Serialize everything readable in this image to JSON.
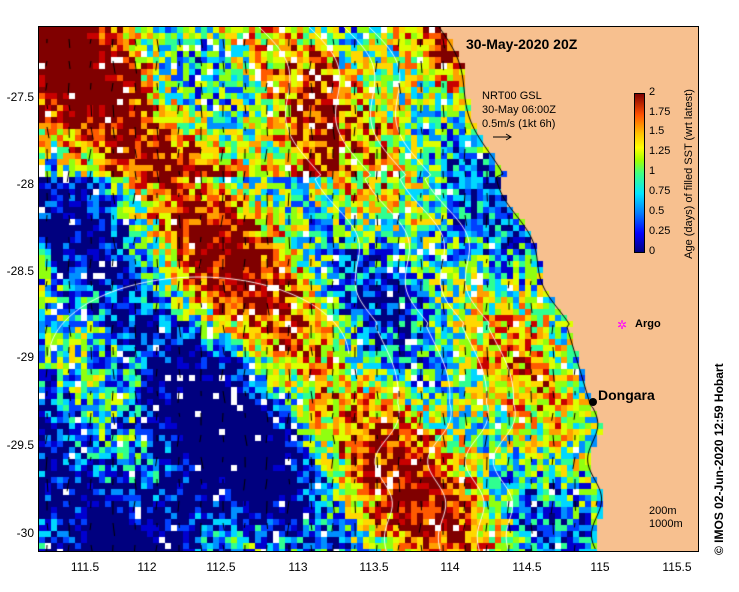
{
  "title": "30-May-2020 20Z",
  "gsl": {
    "line1": "NRT00 GSL",
    "line2": "30-May 06:00Z",
    "line3": "0.5m/s (1kt 6h)"
  },
  "colorbar": {
    "title": "Age (days) of filled SST (wrt latest)",
    "ticks": [
      "2",
      "1.75",
      "1.5",
      "1.25",
      "1",
      "0.75",
      "0.5",
      "0.25",
      "0"
    ],
    "range": [
      0,
      2
    ]
  },
  "axes": {
    "y_ticks": [
      "-27.5",
      "-28",
      "-28.5",
      "-29",
      "-29.5",
      "-30"
    ],
    "x_ticks": [
      "111.5",
      "112",
      "112.5",
      "113",
      "113.5",
      "114",
      "114.5",
      "115",
      "115.5"
    ],
    "lon_range": [
      111.3,
      115.6
    ],
    "lat_range": [
      -27.1,
      -30.1
    ]
  },
  "places": {
    "argo": "Argo",
    "dongara": "Dongara"
  },
  "scale": {
    "line1": "200m",
    "line2": "1000m"
  },
  "credit": "© IMOS 02-Jun-2020 12:59 Hobart",
  "colors": {
    "land": "#f7c08f",
    "argo": "#ff00ff"
  }
}
